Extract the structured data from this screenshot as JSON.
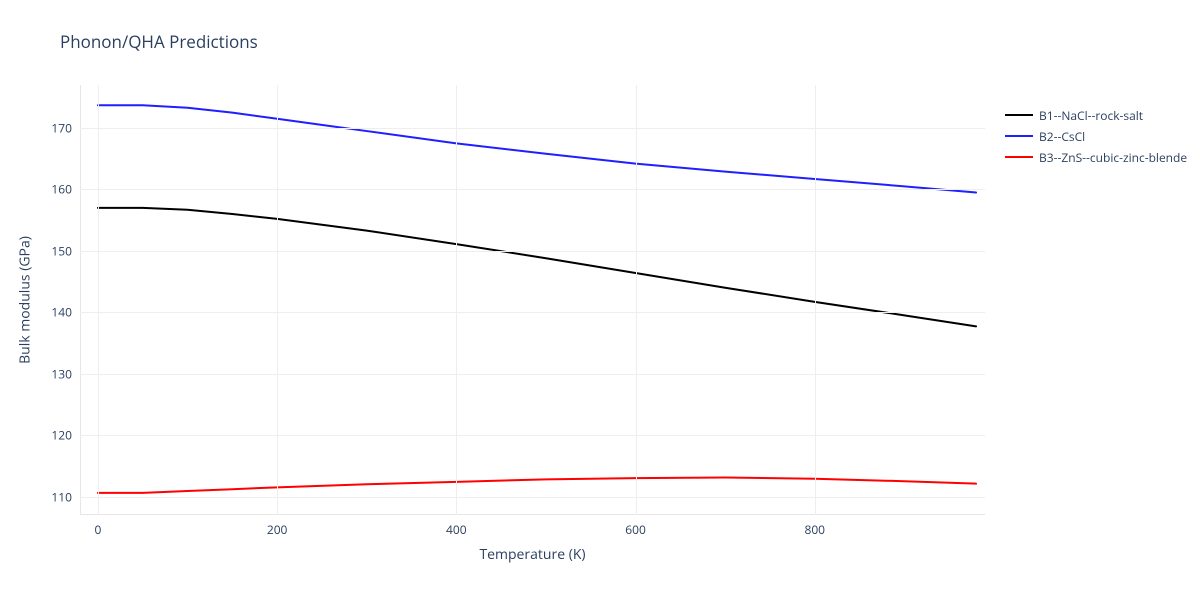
{
  "title": "Phonon/QHA Predictions",
  "chart": {
    "type": "line",
    "background_color": "#ffffff",
    "grid_color": "#eeeeee",
    "axis_line_color": "#e6e6e6",
    "text_color": "#2a3f5f",
    "title_fontsize": 17,
    "axis_title_fontsize": 14,
    "tick_fontsize": 12,
    "line_width": 2,
    "x_axis": {
      "title": "Temperature (K)",
      "min": -20,
      "max": 990,
      "ticks": [
        0,
        200,
        400,
        600,
        800
      ]
    },
    "y_axis": {
      "title": "Bulk modulus (GPa)",
      "min": 107,
      "max": 177,
      "ticks": [
        110,
        120,
        130,
        140,
        150,
        160,
        170
      ]
    },
    "series": [
      {
        "id": "b1",
        "label": "B1--NaCl--rock-salt",
        "color": "#000000",
        "x": [
          0,
          50,
          100,
          150,
          200,
          300,
          400,
          500,
          600,
          700,
          800,
          900,
          980
        ],
        "y": [
          157.0,
          157.0,
          156.7,
          156.0,
          155.2,
          153.3,
          151.1,
          148.8,
          146.4,
          144.0,
          141.7,
          139.5,
          137.7
        ]
      },
      {
        "id": "b2",
        "label": "B2--CsCl",
        "color": "#1f1fff",
        "x": [
          0,
          50,
          100,
          150,
          200,
          300,
          400,
          500,
          600,
          700,
          800,
          900,
          980
        ],
        "y": [
          173.7,
          173.7,
          173.3,
          172.5,
          171.5,
          169.5,
          167.5,
          165.8,
          164.2,
          162.9,
          161.7,
          160.5,
          159.5
        ]
      },
      {
        "id": "b3",
        "label": "B3--ZnS--cubic-zinc-blende",
        "color": "#ff0000",
        "x": [
          0,
          50,
          100,
          150,
          200,
          300,
          400,
          500,
          600,
          700,
          800,
          900,
          980
        ],
        "y": [
          110.6,
          110.6,
          110.9,
          111.2,
          111.5,
          112.0,
          112.4,
          112.8,
          113.0,
          113.1,
          112.9,
          112.5,
          112.1
        ]
      }
    ]
  },
  "legend": {
    "items": [
      {
        "label": "B1--NaCl--rock-salt",
        "color": "#000000"
      },
      {
        "label": "B2--CsCl",
        "color": "#1f1fff"
      },
      {
        "label": "B3--ZnS--cubic-zinc-blende",
        "color": "#ff0000"
      }
    ]
  }
}
